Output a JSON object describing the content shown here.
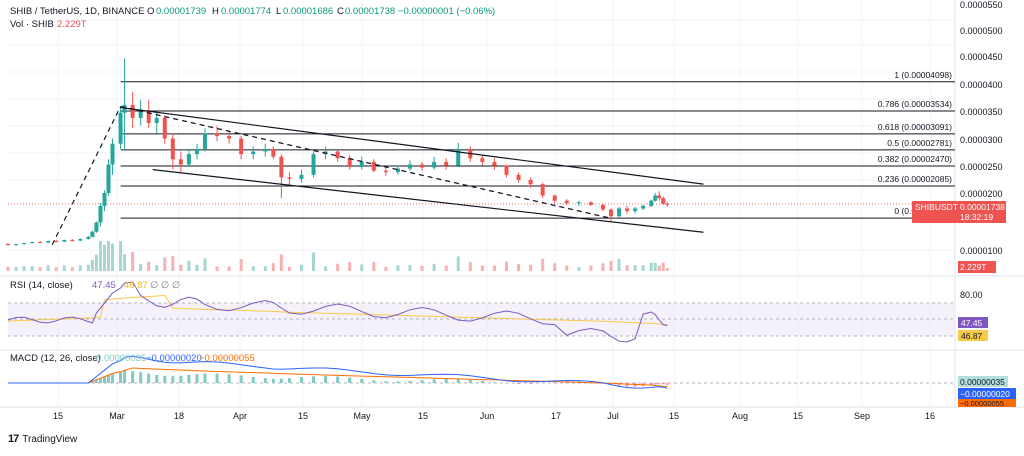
{
  "header": {
    "symbol": "SHIB / TetherUS, 1D, BINANCE",
    "o_label": "O",
    "o_value": "0.00001739",
    "h_label": "H",
    "h_value": "0.00001774",
    "l_label": "L",
    "l_value": "0.00001686",
    "c_label": "C",
    "c_value": "0.00001738",
    "change": "−0.00000001 (−0.06%)",
    "vol_label": "Vol · SHIB",
    "vol_value": "2.229T"
  },
  "price_badge": {
    "symbol": "SHIBUSDT",
    "price": "0.00001738",
    "countdown": "18:32:19"
  },
  "volume_badge": "2.229T",
  "fib_levels": [
    {
      "label": "1 (0.00004098)",
      "value": 4.098e-05
    },
    {
      "label": "0.786 (0.00003534)",
      "value": 3.534e-05
    },
    {
      "label": "0.618 (0.00003091)",
      "value": 3.091e-05
    },
    {
      "label": "0.5 (0.00002781)",
      "value": 2.781e-05
    },
    {
      "label": "0.382 (0.00002470)",
      "value": 2.47e-05
    },
    {
      "label": "0.236 (0.00002085)",
      "value": 2.085e-05
    },
    {
      "label": "0 (0.00001463)",
      "value": 1.463e-05
    }
  ],
  "price_axis_labels": [
    "0.0000550",
    "0.0000500",
    "0.0000450",
    "0.0000400",
    "0.0000350",
    "0.0000300",
    "0.0000250",
    "0.0000200",
    "0.0000100"
  ],
  "rsi": {
    "label": "RSI (14, close)",
    "value1": "47.45",
    "value2": "46.87",
    "axis_labels": [
      "80.00"
    ],
    "badge1": "47.45",
    "badge2": "46.87",
    "rsi_color": "#7e57c2",
    "ma_color": "#f7c948"
  },
  "macd": {
    "label": "MACD (12, 26, close)",
    "value1": "0.00000035",
    "value2": "−0.00000020",
    "value3": "−0.00000055",
    "badge1": "0.00000035",
    "badge2": "−0.00000020",
    "badge3": "−0.00000055"
  },
  "time_axis_labels": [
    "15",
    "Mar",
    "18",
    "Apr",
    "15",
    "May",
    "15",
    "Jun",
    "17",
    "Jul",
    "15",
    "Aug",
    "15",
    "Sep",
    "16"
  ],
  "footer": {
    "brand": "TradingView",
    "logo": "tradingview-logo"
  },
  "colors": {
    "up": "#26a69a",
    "down": "#ef5350",
    "line": "#131722",
    "grid": "#f0f3fa"
  },
  "chart_data": {
    "type": "candlestick",
    "title": "SHIB / TetherUS, 1D, BINANCE",
    "y_range": [
      5e-06,
      5.6e-05
    ],
    "start_date": "2024-02-05",
    "candles": [
      {
        "date": "2024-02-05",
        "o": 9.65e-06,
        "h": 9.75e-06,
        "l": 9.3e-06,
        "c": 9.5e-06
      },
      {
        "date": "2024-02-07",
        "o": 9.5e-06,
        "h": 9.7e-06,
        "l": 9.3e-06,
        "c": 9.6e-06
      },
      {
        "date": "2024-02-09",
        "o": 9.6e-06,
        "h": 9.9e-06,
        "l": 9.5e-06,
        "c": 9.8e-06
      },
      {
        "date": "2024-02-11",
        "o": 9.8e-06,
        "h": 1.01e-05,
        "l": 9.7e-06,
        "c": 1e-05
      },
      {
        "date": "2024-02-13",
        "o": 1e-05,
        "h": 1.02e-05,
        "l": 9.8e-06,
        "c": 9.9e-06
      },
      {
        "date": "2024-02-15",
        "o": 9.9e-06,
        "h": 1.03e-05,
        "l": 9.8e-06,
        "c": 1.02e-05
      },
      {
        "date": "2024-02-17",
        "o": 1.02e-05,
        "h": 1.04e-05,
        "l": 1e-05,
        "c": 1.01e-05
      },
      {
        "date": "2024-02-19",
        "o": 1.01e-05,
        "h": 1.05e-05,
        "l": 1e-05,
        "c": 1.04e-05
      },
      {
        "date": "2024-02-21",
        "o": 1.04e-05,
        "h": 1.06e-05,
        "l": 1.01e-05,
        "c": 1.03e-05
      },
      {
        "date": "2024-02-23",
        "o": 1.03e-05,
        "h": 1.07e-05,
        "l": 1.02e-05,
        "c": 1.06e-05
      },
      {
        "date": "2024-02-25",
        "o": 1.06e-05,
        "h": 1.12e-05,
        "l": 1.05e-05,
        "c": 1.1e-05
      },
      {
        "date": "2024-02-26",
        "o": 1.1e-05,
        "h": 1.22e-05,
        "l": 1.09e-05,
        "c": 1.2e-05
      },
      {
        "date": "2024-02-27",
        "o": 1.2e-05,
        "h": 1.4e-05,
        "l": 1.18e-05,
        "c": 1.38e-05
      },
      {
        "date": "2024-02-28",
        "o": 1.38e-05,
        "h": 1.75e-05,
        "l": 1.3e-05,
        "c": 1.7e-05
      },
      {
        "date": "2024-02-29",
        "o": 1.7e-05,
        "h": 2e-05,
        "l": 1.6e-05,
        "c": 1.95e-05
      },
      {
        "date": "2024-03-01",
        "o": 1.95e-05,
        "h": 2.6e-05,
        "l": 1.9e-05,
        "c": 2.5e-05
      },
      {
        "date": "2024-03-02",
        "o": 2.5e-05,
        "h": 3e-05,
        "l": 2.3e-05,
        "c": 2.9e-05
      },
      {
        "date": "2024-03-04",
        "o": 2.9e-05,
        "h": 3.6e-05,
        "l": 2.8e-05,
        "c": 3.5e-05
      },
      {
        "date": "2024-03-05",
        "o": 3.5e-05,
        "h": 4.55e-05,
        "l": 2.8e-05,
        "c": 3.65e-05
      },
      {
        "date": "2024-03-07",
        "o": 3.65e-05,
        "h": 3.9e-05,
        "l": 3.2e-05,
        "c": 3.4e-05
      },
      {
        "date": "2024-03-09",
        "o": 3.4e-05,
        "h": 3.75e-05,
        "l": 3.25e-05,
        "c": 3.55e-05
      },
      {
        "date": "2024-03-11",
        "o": 3.55e-05,
        "h": 3.75e-05,
        "l": 3.2e-05,
        "c": 3.3e-05
      },
      {
        "date": "2024-03-13",
        "o": 3.3e-05,
        "h": 3.5e-05,
        "l": 3.1e-05,
        "c": 3.4e-05
      },
      {
        "date": "2024-03-15",
        "o": 3.4e-05,
        "h": 3.45e-05,
        "l": 2.9e-05,
        "c": 3e-05
      },
      {
        "date": "2024-03-17",
        "o": 3e-05,
        "h": 3.1e-05,
        "l": 2.4e-05,
        "c": 2.6e-05
      },
      {
        "date": "2024-03-19",
        "o": 2.6e-05,
        "h": 2.75e-05,
        "l": 2.35e-05,
        "c": 2.5e-05
      },
      {
        "date": "2024-03-21",
        "o": 2.5e-05,
        "h": 2.8e-05,
        "l": 2.45e-05,
        "c": 2.7e-05
      },
      {
        "date": "2024-03-23",
        "o": 2.7e-05,
        "h": 2.9e-05,
        "l": 2.6e-05,
        "c": 2.8e-05
      },
      {
        "date": "2024-03-25",
        "o": 2.8e-05,
        "h": 3.2e-05,
        "l": 2.75e-05,
        "c": 3.1e-05
      },
      {
        "date": "2024-03-28",
        "o": 3.1e-05,
        "h": 3.25e-05,
        "l": 2.95e-05,
        "c": 3.05e-05
      },
      {
        "date": "2024-03-31",
        "o": 3.05e-05,
        "h": 3.15e-05,
        "l": 2.9e-05,
        "c": 3e-05
      },
      {
        "date": "2024-04-03",
        "o": 3e-05,
        "h": 3.05e-05,
        "l": 2.6e-05,
        "c": 2.7e-05
      },
      {
        "date": "2024-04-06",
        "o": 2.7e-05,
        "h": 2.85e-05,
        "l": 2.6e-05,
        "c": 2.75e-05
      },
      {
        "date": "2024-04-09",
        "o": 2.75e-05,
        "h": 2.9e-05,
        "l": 2.65e-05,
        "c": 2.8e-05
      },
      {
        "date": "2024-04-11",
        "o": 2.8e-05,
        "h": 2.85e-05,
        "l": 2.6e-05,
        "c": 2.65e-05
      },
      {
        "date": "2024-04-13",
        "o": 2.65e-05,
        "h": 2.7e-05,
        "l": 1.85e-05,
        "c": 2.25e-05
      },
      {
        "date": "2024-04-15",
        "o": 2.25e-05,
        "h": 2.35e-05,
        "l": 2.1e-05,
        "c": 2.22e-05
      },
      {
        "date": "2024-04-18",
        "o": 2.22e-05,
        "h": 2.4e-05,
        "l": 2.15e-05,
        "c": 2.3e-05
      },
      {
        "date": "2024-04-21",
        "o": 2.3e-05,
        "h": 2.75e-05,
        "l": 2.25e-05,
        "c": 2.7e-05
      },
      {
        "date": "2024-04-24",
        "o": 2.7e-05,
        "h": 2.85e-05,
        "l": 2.6e-05,
        "c": 2.75e-05
      },
      {
        "date": "2024-04-27",
        "o": 2.75e-05,
        "h": 2.8e-05,
        "l": 2.55e-05,
        "c": 2.62e-05
      },
      {
        "date": "2024-04-30",
        "o": 2.62e-05,
        "h": 2.68e-05,
        "l": 2.4e-05,
        "c": 2.45e-05
      },
      {
        "date": "2024-05-03",
        "o": 2.45e-05,
        "h": 2.65e-05,
        "l": 2.4e-05,
        "c": 2.55e-05
      },
      {
        "date": "2024-05-06",
        "o": 2.55e-05,
        "h": 2.6e-05,
        "l": 2.35e-05,
        "c": 2.38e-05
      },
      {
        "date": "2024-05-09",
        "o": 2.38e-05,
        "h": 2.45e-05,
        "l": 2.28e-05,
        "c": 2.35e-05
      },
      {
        "date": "2024-05-12",
        "o": 2.35e-05,
        "h": 2.48e-05,
        "l": 2.3e-05,
        "c": 2.42e-05
      },
      {
        "date": "2024-05-15",
        "o": 2.42e-05,
        "h": 2.58e-05,
        "l": 2.38e-05,
        "c": 2.5e-05
      },
      {
        "date": "2024-05-18",
        "o": 2.5e-05,
        "h": 2.55e-05,
        "l": 2.38e-05,
        "c": 2.44e-05
      },
      {
        "date": "2024-05-21",
        "o": 2.44e-05,
        "h": 2.65e-05,
        "l": 2.4e-05,
        "c": 2.55e-05
      },
      {
        "date": "2024-05-24",
        "o": 2.55e-05,
        "h": 2.62e-05,
        "l": 2.4e-05,
        "c": 2.48e-05
      },
      {
        "date": "2024-05-27",
        "o": 2.48e-05,
        "h": 2.92e-05,
        "l": 2.45e-05,
        "c": 2.8e-05
      },
      {
        "date": "2024-05-30",
        "o": 2.8e-05,
        "h": 2.85e-05,
        "l": 2.55e-05,
        "c": 2.62e-05
      },
      {
        "date": "2024-06-02",
        "o": 2.62e-05,
        "h": 2.68e-05,
        "l": 2.48e-05,
        "c": 2.55e-05
      },
      {
        "date": "2024-06-05",
        "o": 2.55e-05,
        "h": 2.62e-05,
        "l": 2.4e-05,
        "c": 2.48e-05
      },
      {
        "date": "2024-06-08",
        "o": 2.48e-05,
        "h": 2.5e-05,
        "l": 2.25e-05,
        "c": 2.3e-05
      },
      {
        "date": "2024-06-11",
        "o": 2.3e-05,
        "h": 2.35e-05,
        "l": 2.15e-05,
        "c": 2.2e-05
      },
      {
        "date": "2024-06-14",
        "o": 2.2e-05,
        "h": 2.25e-05,
        "l": 2.05e-05,
        "c": 2.12e-05
      },
      {
        "date": "2024-06-17",
        "o": 2.12e-05,
        "h": 2.15e-05,
        "l": 1.85e-05,
        "c": 1.9e-05
      },
      {
        "date": "2024-06-20",
        "o": 1.9e-05,
        "h": 1.92e-05,
        "l": 1.75e-05,
        "c": 1.8e-05
      },
      {
        "date": "2024-06-23",
        "o": 1.8e-05,
        "h": 1.83e-05,
        "l": 1.72e-05,
        "c": 1.75e-05
      },
      {
        "date": "2024-06-26",
        "o": 1.75e-05,
        "h": 1.8e-05,
        "l": 1.7e-05,
        "c": 1.77e-05
      },
      {
        "date": "2024-06-29",
        "o": 1.77e-05,
        "h": 1.79e-05,
        "l": 1.7e-05,
        "c": 1.72e-05
      },
      {
        "date": "2024-07-02",
        "o": 1.72e-05,
        "h": 1.74e-05,
        "l": 1.6e-05,
        "c": 1.63e-05
      },
      {
        "date": "2024-07-04",
        "o": 1.63e-05,
        "h": 1.65e-05,
        "l": 1.4e-05,
        "c": 1.5e-05
      },
      {
        "date": "2024-07-06",
        "o": 1.5e-05,
        "h": 1.68e-05,
        "l": 1.48e-05,
        "c": 1.65e-05
      },
      {
        "date": "2024-07-08",
        "o": 1.65e-05,
        "h": 1.7e-05,
        "l": 1.55e-05,
        "c": 1.6e-05
      },
      {
        "date": "2024-07-10",
        "o": 1.6e-05,
        "h": 1.68e-05,
        "l": 1.56e-05,
        "c": 1.65e-05
      },
      {
        "date": "2024-07-12",
        "o": 1.65e-05,
        "h": 1.72e-05,
        "l": 1.62e-05,
        "c": 1.7e-05
      },
      {
        "date": "2024-07-14",
        "o": 1.7e-05,
        "h": 1.82e-05,
        "l": 1.68e-05,
        "c": 1.8e-05
      },
      {
        "date": "2024-07-15",
        "o": 1.8e-05,
        "h": 1.95e-05,
        "l": 1.78e-05,
        "c": 1.9e-05
      },
      {
        "date": "2024-07-16",
        "o": 1.9e-05,
        "h": 1.98e-05,
        "l": 1.8e-05,
        "c": 1.85e-05
      },
      {
        "date": "2024-07-17",
        "o": 1.85e-05,
        "h": 1.88e-05,
        "l": 1.72e-05,
        "c": 1.74e-05
      },
      {
        "date": "2024-07-18",
        "o": 1.739e-05,
        "h": 1.774e-05,
        "l": 1.686e-05,
        "c": 1.738e-05
      }
    ],
    "trendlines": [
      {
        "style": "solid",
        "from": {
          "date": "2024-03-04",
          "y": 3.6e-05
        },
        "to": {
          "date": "2024-07-27",
          "y": 2.12e-05
        }
      },
      {
        "style": "solid",
        "from": {
          "date": "2024-03-12",
          "y": 2.4e-05
        },
        "to": {
          "date": "2024-07-27",
          "y": 1.19e-05
        }
      },
      {
        "style": "dashed",
        "from": {
          "date": "2024-02-16",
          "y": 9.5e-06
        },
        "to": {
          "date": "2024-03-04",
          "y": 3.62e-05
        }
      },
      {
        "style": "dashed",
        "from": {
          "date": "2024-03-04",
          "y": 3.62e-05
        },
        "to": {
          "date": "2024-07-04",
          "y": 1.46e-05
        }
      }
    ],
    "fib_range": {
      "from_date": "2024-03-04",
      "to_date": "2024-07-27"
    }
  }
}
